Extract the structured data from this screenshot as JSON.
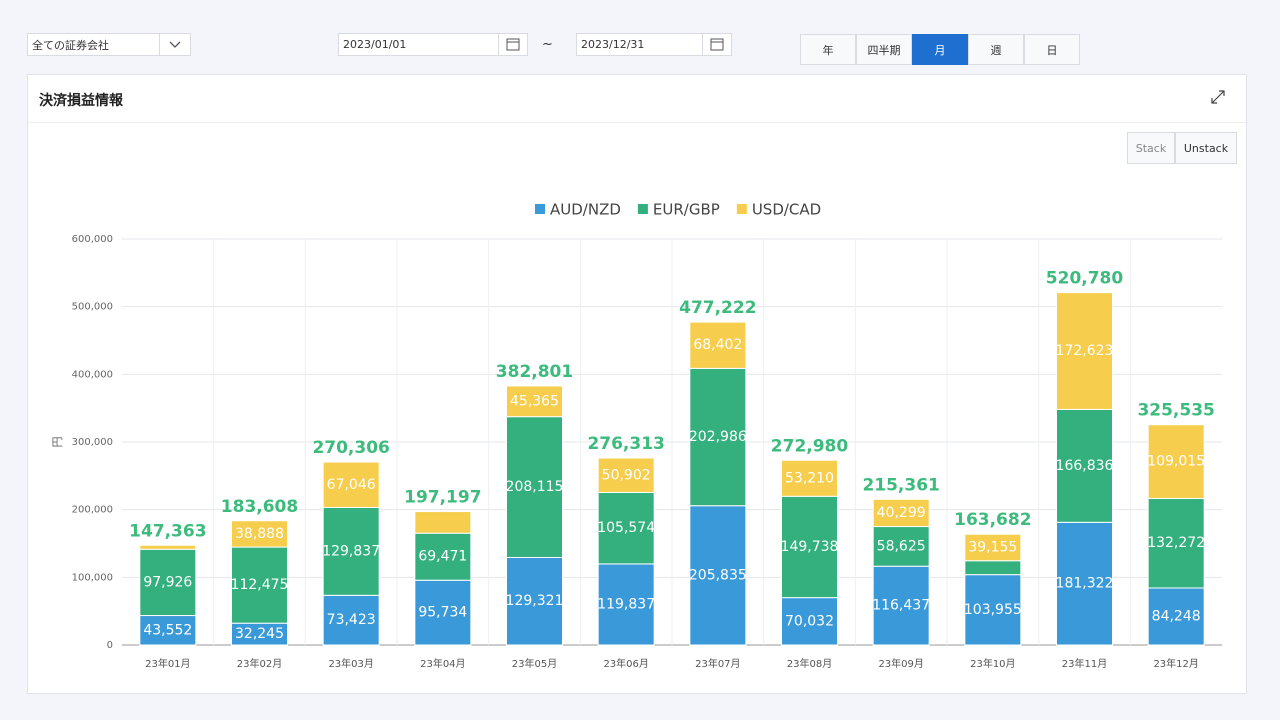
{
  "ui": {
    "company_select": "全ての証券会社",
    "date_from": "2023/01/01",
    "date_sep": "~",
    "date_to": "2023/12/31",
    "periods": [
      "年",
      "四半期",
      "月",
      "週",
      "日"
    ],
    "active_period_index": 2,
    "panel_title": "決済損益情報",
    "stack_buttons": [
      "Stack",
      "Unstack"
    ]
  },
  "chart_data": {
    "type": "stacked_bar",
    "y_label": "円",
    "categories": [
      "23年01月",
      "23年02月",
      "23年03月",
      "23年04月",
      "23年05月",
      "23年06月",
      "23年07月",
      "23年08月",
      "23年09月",
      "23年10月",
      "23年11月",
      "23年12月"
    ],
    "series": [
      {
        "name": "AUD/NZD",
        "color": "#3a9ad9",
        "values": [
          43552,
          32245,
          73423,
          95734,
          129321,
          119837,
          205835,
          70032,
          116437,
          103955,
          181322,
          84248
        ],
        "value_labels": [
          "43,552",
          "32,245",
          "73,423",
          "95,734",
          "129,321",
          "119,837",
          "205,835",
          "70,032",
          "116,437",
          "103,955",
          "181,322",
          "84,248"
        ]
      },
      {
        "name": "EUR/GBP",
        "color": "#34b07f",
        "values": [
          97926,
          112475,
          129837,
          69471,
          208115,
          105574,
          202986,
          149738,
          58625,
          20572,
          166836,
          132272
        ],
        "value_labels": [
          "97,926",
          "112,475",
          "129,837",
          "69,471",
          "208,115",
          "105,574",
          "202,986",
          "149,738",
          "58,625",
          null,
          "166,836",
          "132,272"
        ]
      },
      {
        "name": "USD/CAD",
        "color": "#f6cd4c",
        "values": [
          5885,
          38888,
          67046,
          31992,
          45365,
          50902,
          68402,
          53210,
          40299,
          39155,
          172623,
          109015
        ],
        "value_labels": [
          null,
          "38,888",
          "67,046",
          null,
          "45,365",
          "50,902",
          "68,402",
          "53,210",
          "40,299",
          "39,155",
          "172,623",
          "109,015"
        ]
      }
    ],
    "totals": [
      147363,
      183608,
      270306,
      197197,
      382801,
      276313,
      477222,
      272980,
      215361,
      163682,
      520780,
      325535
    ],
    "total_labels": [
      "147,363",
      "183,608",
      "270,306",
      "197,197",
      "382,801",
      "276,313",
      "477,222",
      "272,980",
      "215,361",
      "163,682",
      "520,780",
      "325,535"
    ],
    "total_color": "#3dbb7d",
    "ylim": [
      0,
      600000
    ],
    "yticks": [
      0,
      {
        "value": 100000,
        "label": "100,000"
      },
      {
        "value": 200000,
        "label": "200,000"
      },
      {
        "value": 300000,
        "label": "300,000"
      },
      {
        "value": 400000,
        "label": "400,000"
      },
      {
        "value": 500000,
        "label": "500,000"
      },
      {
        "value": 600000,
        "label": "600,000"
      }
    ],
    "grid": true,
    "legend": "top"
  }
}
